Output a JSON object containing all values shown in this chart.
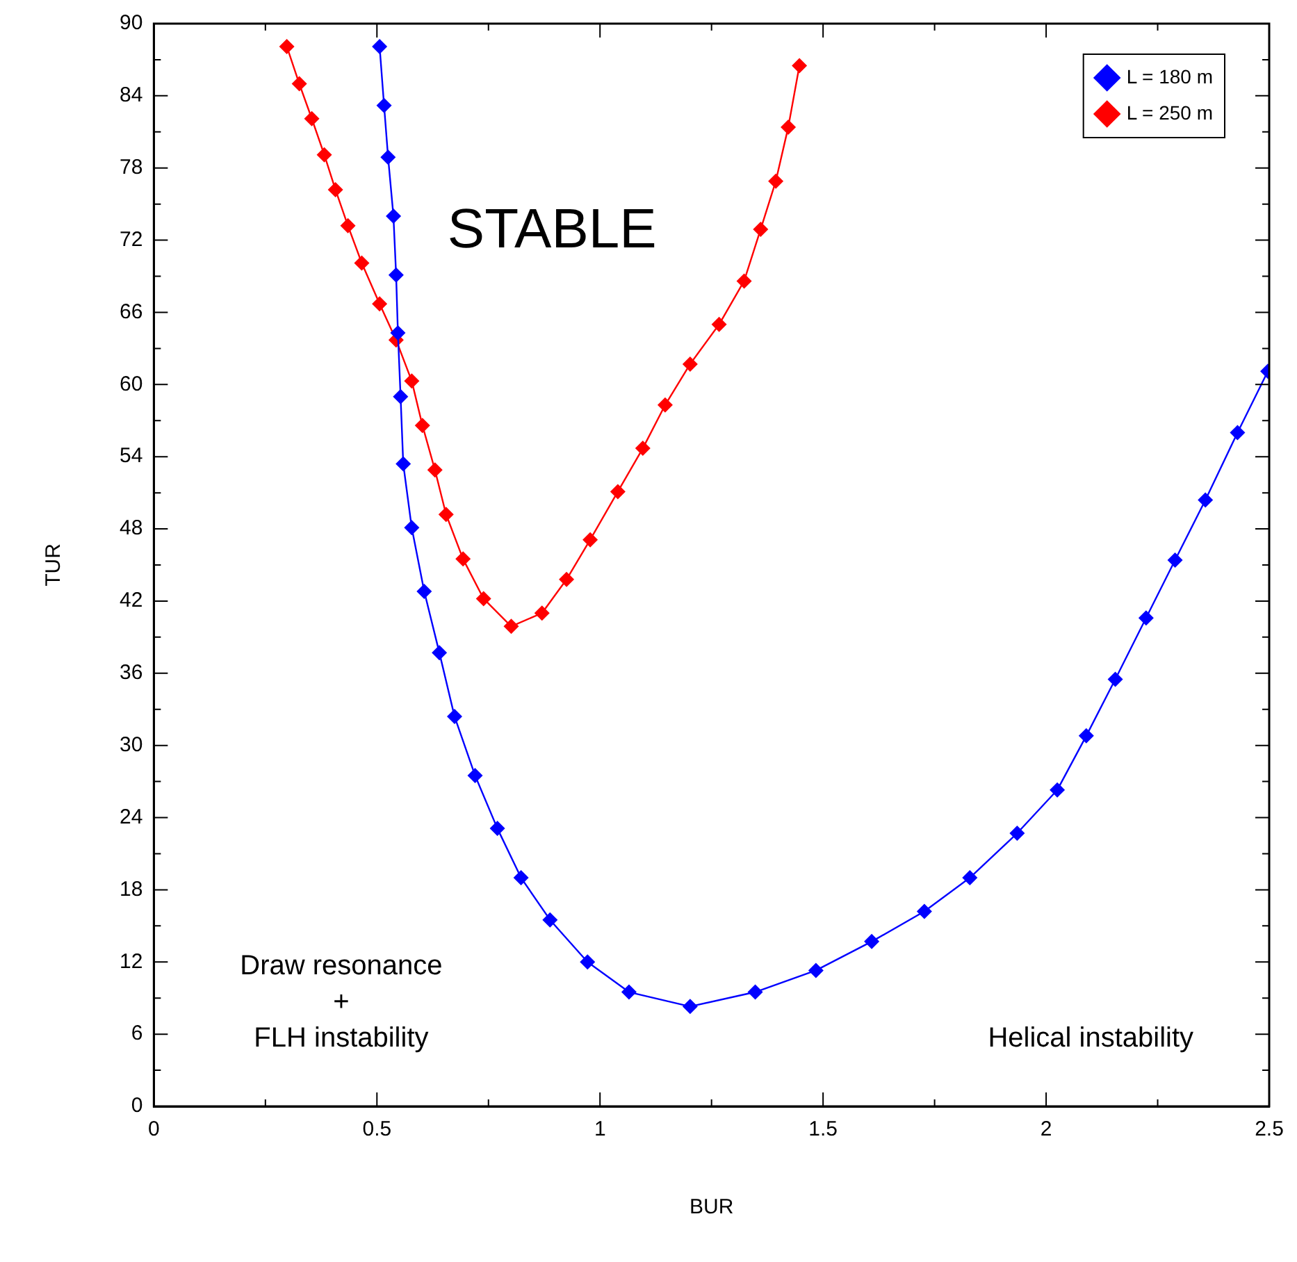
{
  "chart_data": {
    "type": "line",
    "xlabel": "BUR",
    "ylabel": "TUR",
    "xlim": [
      0,
      2.5
    ],
    "ylim": [
      0,
      90
    ],
    "xticks": [
      0,
      {
        "value": 0.25,
        "label": null
      },
      0.5,
      {
        "value": 0.75,
        "label": null
      },
      1,
      {
        "value": 1.25,
        "label": null
      },
      1.5,
      {
        "value": 1.75,
        "label": null
      },
      2,
      {
        "value": 2.25,
        "label": null
      },
      2.5
    ],
    "yticks": [
      0,
      {
        "value": 3,
        "label": null
      },
      6,
      {
        "value": 9,
        "label": null
      },
      12,
      {
        "value": 15,
        "label": null
      },
      18,
      {
        "value": 21,
        "label": null
      },
      24,
      {
        "value": 27,
        "label": null
      },
      30,
      {
        "value": 33,
        "label": null
      },
      36,
      {
        "value": 39,
        "label": null
      },
      42,
      {
        "value": 45,
        "label": null
      },
      48,
      {
        "value": 51,
        "label": null
      },
      54,
      {
        "value": 57,
        "label": null
      },
      60,
      {
        "value": 63,
        "label": null
      },
      66,
      {
        "value": 69,
        "label": null
      },
      72,
      {
        "value": 75,
        "label": null
      },
      78,
      {
        "value": 81,
        "label": null
      },
      84,
      {
        "value": 87,
        "label": null
      },
      90
    ],
    "grid": false,
    "legend": "top right",
    "marker": "diamond",
    "line_style": "solid",
    "annotations": [
      "STABLE",
      "Draw resonance\n+\nFLH instability",
      "Helical instability"
    ],
    "series": [
      {
        "name": "L = 180 m",
        "color": "#0000ff",
        "x": [
          0.506,
          0.516,
          0.525,
          0.537,
          0.543,
          0.547,
          0.553,
          0.559,
          0.578,
          0.606,
          0.64,
          0.674,
          0.72,
          0.77,
          0.823,
          0.888,
          0.972,
          1.065,
          1.202,
          1.348,
          1.484,
          1.609,
          1.727,
          1.829,
          1.935,
          2.025,
          2.09,
          2.155,
          2.224,
          2.289,
          2.357,
          2.429,
          2.497
        ],
        "values": [
          88.1,
          83.2,
          78.9,
          74.0,
          69.1,
          64.3,
          59.0,
          53.4,
          48.1,
          42.8,
          37.7,
          32.4,
          27.5,
          23.1,
          19.0,
          15.5,
          12.0,
          9.5,
          8.3,
          9.5,
          11.3,
          13.7,
          16.2,
          19.0,
          22.7,
          26.3,
          30.8,
          35.5,
          40.6,
          45.4,
          50.4,
          56.0,
          61.1
        ]
      },
      {
        "name": "L = 250 m",
        "color": "#ff0000",
        "x": [
          0.298,
          0.326,
          0.354,
          0.382,
          0.407,
          0.435,
          0.466,
          0.506,
          0.543,
          0.578,
          0.602,
          0.63,
          0.655,
          0.693,
          0.739,
          0.801,
          0.87,
          0.925,
          0.978,
          1.04,
          1.096,
          1.146,
          1.202,
          1.267,
          1.323,
          1.36,
          1.394,
          1.422,
          1.447
        ],
        "values": [
          88.1,
          85.0,
          82.1,
          79.1,
          76.2,
          73.2,
          70.1,
          66.7,
          63.7,
          60.3,
          56.6,
          52.9,
          49.2,
          45.5,
          42.2,
          39.9,
          41.0,
          43.8,
          47.1,
          51.1,
          54.7,
          58.3,
          61.7,
          65.0,
          68.6,
          72.9,
          76.9,
          81.4,
          86.5
        ]
      }
    ]
  }
}
